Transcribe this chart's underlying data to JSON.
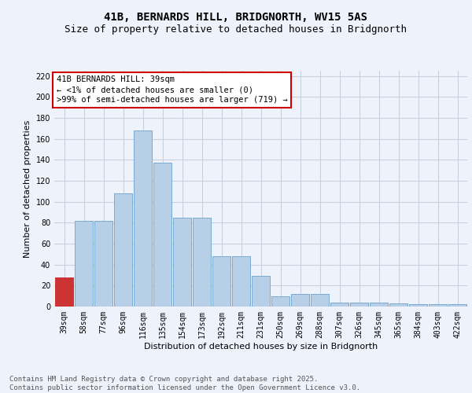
{
  "title_line1": "41B, BERNARDS HILL, BRIDGNORTH, WV15 5AS",
  "title_line2": "Size of property relative to detached houses in Bridgnorth",
  "xlabel": "Distribution of detached houses by size in Bridgnorth",
  "ylabel": "Number of detached properties",
  "categories": [
    "39sqm",
    "58sqm",
    "77sqm",
    "96sqm",
    "116sqm",
    "135sqm",
    "154sqm",
    "173sqm",
    "192sqm",
    "211sqm",
    "231sqm",
    "250sqm",
    "269sqm",
    "288sqm",
    "307sqm",
    "326sqm",
    "345sqm",
    "365sqm",
    "384sqm",
    "403sqm",
    "422sqm"
  ],
  "values": [
    28,
    82,
    82,
    108,
    168,
    137,
    85,
    85,
    48,
    48,
    29,
    10,
    12,
    12,
    4,
    4,
    4,
    3,
    2,
    2,
    2
  ],
  "bar_color": "#b8cfe8",
  "bar_edge_color": "#7aaad0",
  "highlight_index": 0,
  "highlight_bar_color": "#cc3333",
  "annotation_text": "41B BERNARDS HILL: 39sqm\n← <1% of detached houses are smaller (0)\n>99% of semi-detached houses are larger (719) →",
  "annotation_box_color": "#ffffff",
  "annotation_box_edge_color": "#cc0000",
  "ylim": [
    0,
    225
  ],
  "yticks": [
    0,
    20,
    40,
    60,
    80,
    100,
    120,
    140,
    160,
    180,
    200,
    220
  ],
  "grid_color": "#c8d0e0",
  "background_color": "#eef2fb",
  "plot_background": "#eef2fb",
  "footer_text": "Contains HM Land Registry data © Crown copyright and database right 2025.\nContains public sector information licensed under the Open Government Licence v3.0.",
  "title_fontsize": 10,
  "subtitle_fontsize": 9,
  "axis_label_fontsize": 8,
  "tick_fontsize": 7,
  "annotation_fontsize": 7.5,
  "footer_fontsize": 6.5
}
